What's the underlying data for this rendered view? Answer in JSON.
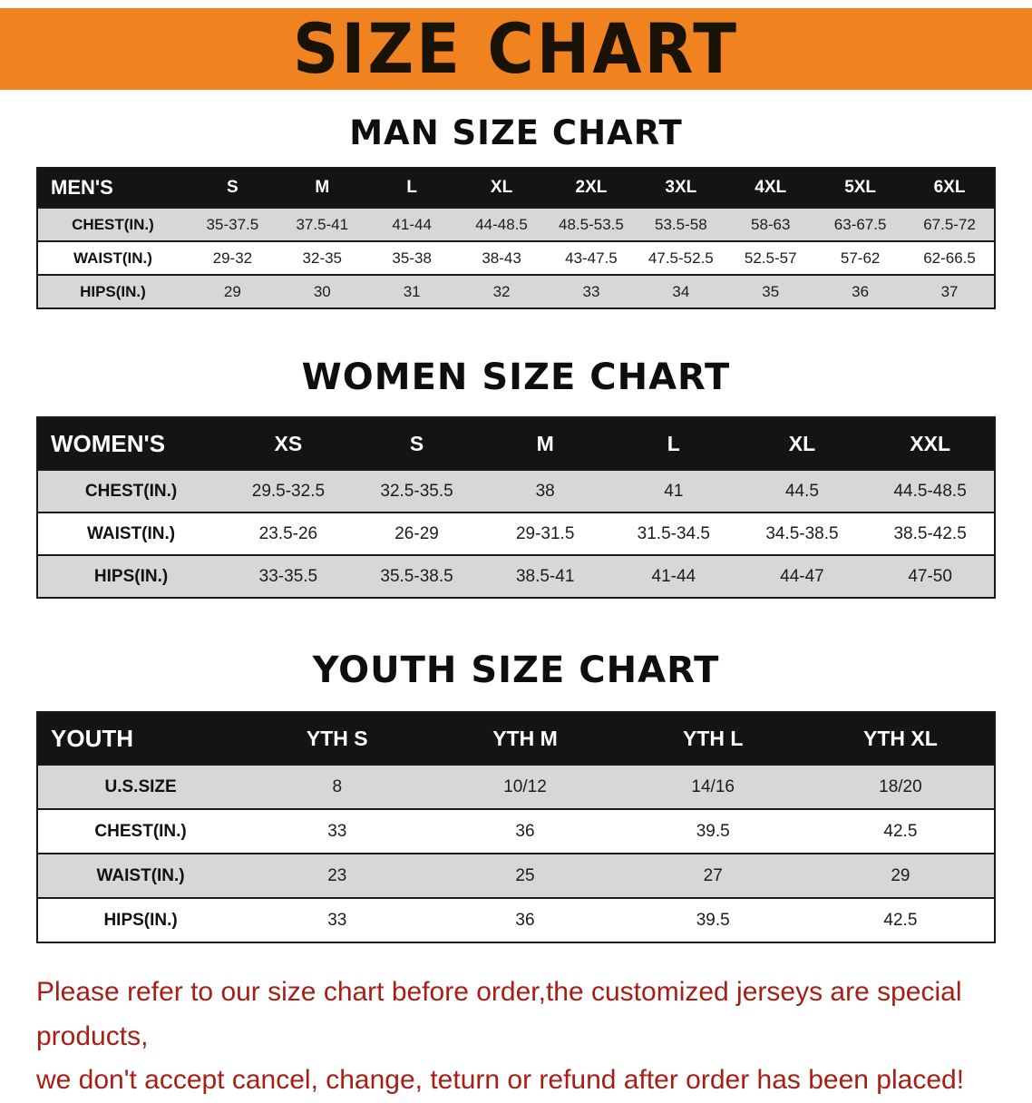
{
  "banner": {
    "title": "SIZE CHART",
    "bg_color": "#f0821f"
  },
  "colors": {
    "banner_bg": "#f0821f",
    "table_header_bg": "#141414",
    "row_alt_gray": "#d7d7d7",
    "footer_text": "#a61e15"
  },
  "sections": [
    {
      "heading": "MAN SIZE CHART",
      "table": {
        "label_header": "MEN'S",
        "columns": [
          "S",
          "M",
          "L",
          "XL",
          "2XL",
          "3XL",
          "4XL",
          "5XL",
          "6XL"
        ],
        "rows": [
          {
            "label": "CHEST(IN.)",
            "values": [
              "35-37.5",
              "37.5-41",
              "41-44",
              "44-48.5",
              "48.5-53.5",
              "53.5-58",
              "58-63",
              "63-67.5",
              "67.5-72"
            ]
          },
          {
            "label": "WAIST(IN.)",
            "values": [
              "29-32",
              "32-35",
              "35-38",
              "38-43",
              "43-47.5",
              "47.5-52.5",
              "52.5-57",
              "57-62",
              "62-66.5"
            ]
          },
          {
            "label": "HIPS(IN.)",
            "values": [
              "29",
              "30",
              "31",
              "32",
              "33",
              "34",
              "35",
              "36",
              "37"
            ]
          }
        ]
      }
    },
    {
      "heading": "WOMEN SIZE CHART",
      "table": {
        "label_header": "WOMEN'S",
        "columns": [
          "XS",
          "S",
          "M",
          "L",
          "XL",
          "XXL"
        ],
        "rows": [
          {
            "label": "CHEST(IN.)",
            "values": [
              "29.5-32.5",
              "32.5-35.5",
              "38",
              "41",
              "44.5",
              "44.5-48.5"
            ]
          },
          {
            "label": "WAIST(IN.)",
            "values": [
              "23.5-26",
              "26-29",
              "29-31.5",
              "31.5-34.5",
              "34.5-38.5",
              "38.5-42.5"
            ]
          },
          {
            "label": "HIPS(IN.)",
            "values": [
              "33-35.5",
              "35.5-38.5",
              "38.5-41",
              "41-44",
              "44-47",
              "47-50"
            ]
          }
        ]
      }
    },
    {
      "heading": "YOUTH SIZE CHART",
      "table": {
        "label_header": "YOUTH",
        "columns": [
          "YTH S",
          "YTH M",
          "YTH L",
          "YTH XL"
        ],
        "rows": [
          {
            "label": "U.S.SIZE",
            "values": [
              "8",
              "10/12",
              "14/16",
              "18/20"
            ]
          },
          {
            "label": "CHEST(IN.)",
            "values": [
              "33",
              "36",
              "39.5",
              "42.5"
            ]
          },
          {
            "label": "WAIST(IN.)",
            "values": [
              "23",
              "25",
              "27",
              "29"
            ]
          },
          {
            "label": "HIPS(IN.)",
            "values": [
              "33",
              "36",
              "39.5",
              "42.5"
            ]
          }
        ]
      }
    }
  ],
  "footer": {
    "line1": "Please refer to our size chart before order,the customized jerseys are special products,",
    "line2": "we don't accept cancel, change, teturn or refund after order has been placed!"
  }
}
